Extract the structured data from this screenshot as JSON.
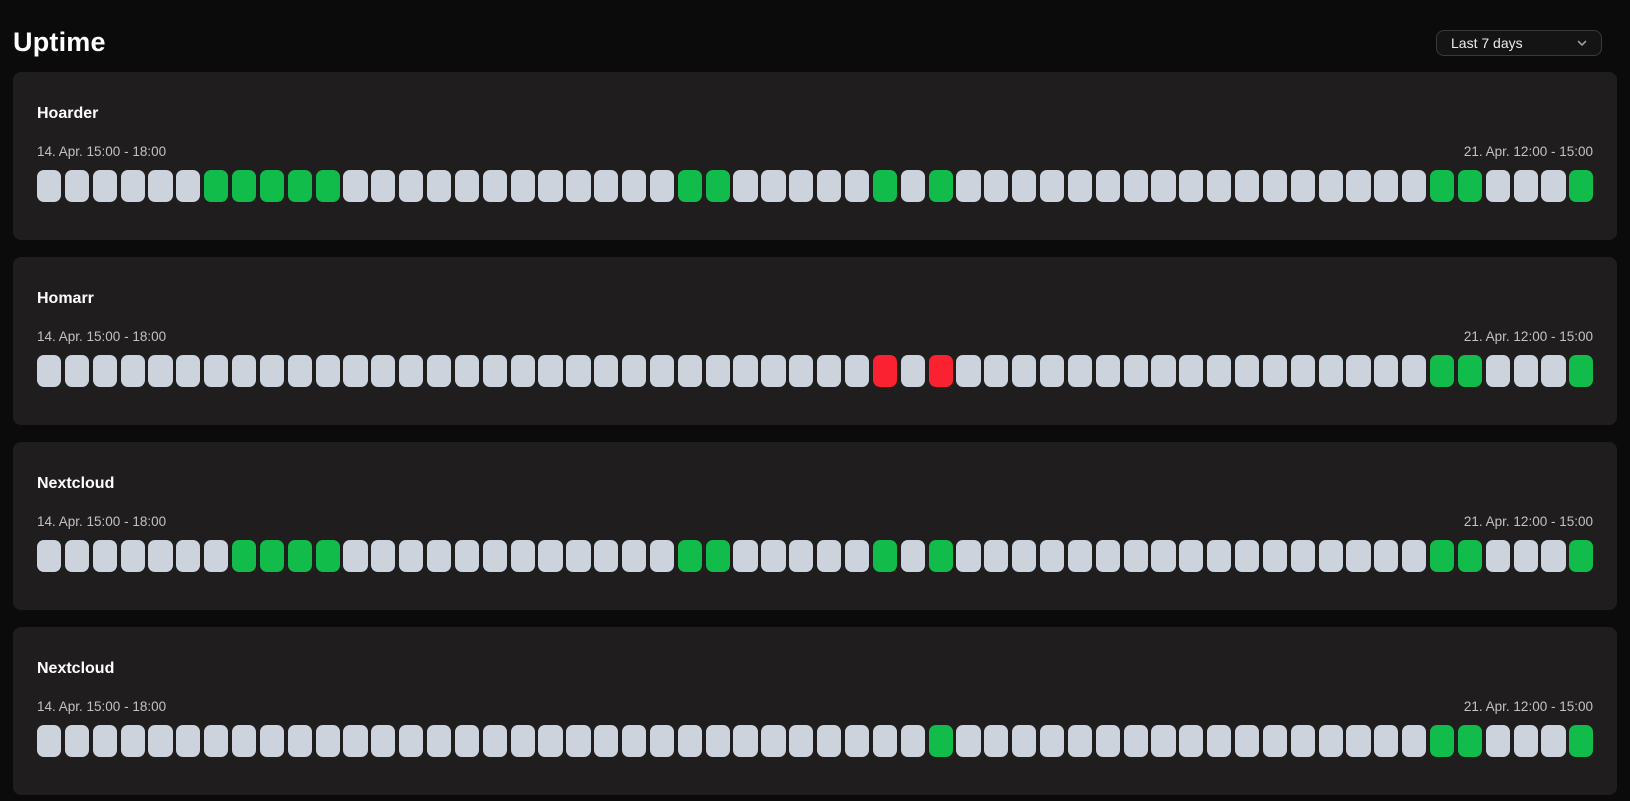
{
  "header": {
    "title": "Uptime"
  },
  "range_select": {
    "value": "Last 7 days",
    "icon": "chevron-down-icon"
  },
  "status_colors": {
    "up": "#12bc4b",
    "down": "#fa2130",
    "unknown": "#cdd3dd"
  },
  "cell_states_legend": {
    "G": "up",
    "R": "down",
    ".": "no-data"
  },
  "cells_per_row": 56,
  "monitors": [
    {
      "name": "Hoarder",
      "range_start": "14. Apr. 15:00 - 18:00",
      "range_end": "21. Apr. 12:00 - 15:00",
      "cells": "......GGGGG............GG.....G.G.................GG...G"
    },
    {
      "name": "Homarr",
      "range_start": "14. Apr. 15:00 - 18:00",
      "range_end": "21. Apr. 12:00 - 15:00",
      "cells": "..............................R.R.................GG...G"
    },
    {
      "name": "Nextcloud",
      "range_start": "14. Apr. 15:00 - 18:00",
      "range_end": "21. Apr. 12:00 - 15:00",
      "cells": ".......GGGG............GG.....G.G.................GG...G"
    },
    {
      "name": "Nextcloud",
      "range_start": "14. Apr. 15:00 - 18:00",
      "range_end": "21. Apr. 12:00 - 15:00",
      "cells": "................................G.................GG...G"
    }
  ]
}
